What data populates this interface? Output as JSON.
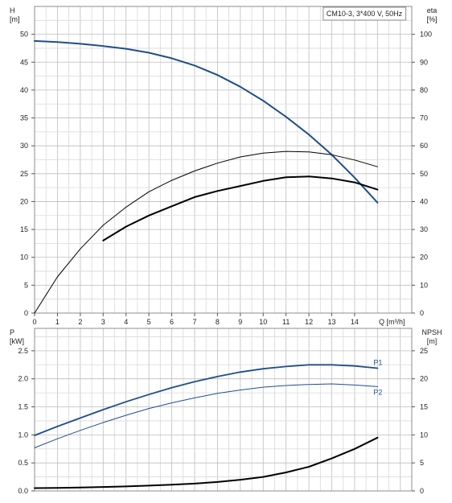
{
  "chart_data": [
    {
      "type": "line",
      "title": "CM10-3, 3*400 V, 50Hz",
      "left_axis": {
        "label": "H",
        "unit": "[m]",
        "range": [
          0,
          55
        ],
        "ticks": [
          0,
          5,
          10,
          15,
          20,
          25,
          30,
          35,
          40,
          45,
          50
        ]
      },
      "right_axis": {
        "label": "eta",
        "unit": "[%]",
        "range": [
          0,
          110
        ],
        "ticks": [
          0,
          10,
          20,
          30,
          40,
          50,
          60,
          70,
          80,
          90,
          100
        ]
      },
      "x_axis": {
        "label": "Q [m³/h]",
        "range": [
          0,
          16.5
        ],
        "ticks": [
          0,
          1,
          2,
          3,
          4,
          5,
          6,
          7,
          8,
          9,
          10,
          11,
          12,
          13,
          14
        ]
      },
      "grid": true,
      "series": [
        {
          "axis": "left",
          "color": "#1f4e8c",
          "width": 2,
          "x": [
            0,
            1,
            2,
            3,
            4,
            5,
            6,
            7,
            8,
            9,
            10,
            11,
            12,
            13,
            14,
            15
          ],
          "y": [
            48.8,
            48.6,
            48.3,
            47.9,
            47.4,
            46.7,
            45.7,
            44.4,
            42.7,
            40.6,
            38.1,
            35.2,
            32,
            28.4,
            24.3,
            19.8
          ]
        },
        {
          "axis": "right",
          "color": "#000000",
          "width": 1,
          "x": [
            0,
            1,
            2,
            3,
            4,
            5,
            6,
            7,
            8,
            9,
            10,
            11,
            12,
            13,
            14,
            15
          ],
          "y": [
            0,
            13,
            23,
            31.5,
            38,
            43.5,
            47.6,
            51,
            53.8,
            56,
            57.4,
            58,
            57.8,
            56.8,
            54.9,
            52.5
          ]
        },
        {
          "axis": "right",
          "color": "#000000",
          "width": 2,
          "x": [
            3,
            4,
            5,
            6,
            7,
            8,
            9,
            10,
            11,
            12,
            13,
            14,
            15
          ],
          "y": [
            26,
            31,
            35,
            38.3,
            41.6,
            43.8,
            45.6,
            47.4,
            48.7,
            49.0,
            48.3,
            46.9,
            44.3
          ]
        }
      ]
    },
    {
      "type": "line",
      "left_axis": {
        "label": "P",
        "unit": "[kW]",
        "range": [
          0,
          2.9
        ],
        "ticks": [
          0.0,
          0.5,
          1.0,
          1.5,
          2.0,
          2.5
        ]
      },
      "right_axis": {
        "label": "NPSH",
        "unit": "[m]",
        "range": [
          0,
          29
        ],
        "ticks": [
          0,
          5,
          10,
          15,
          20,
          25
        ]
      },
      "x_axis": {
        "range": [
          0,
          16.5
        ]
      },
      "grid": true,
      "series": [
        {
          "name": "P1",
          "axis": "left",
          "color": "#1f4e8c",
          "width": 1.8,
          "x": [
            0,
            1,
            2,
            3,
            4,
            5,
            6,
            7,
            8,
            9,
            10,
            11,
            12,
            13,
            14,
            15
          ],
          "y": [
            0.99,
            1.15,
            1.3,
            1.45,
            1.59,
            1.72,
            1.84,
            1.95,
            2.04,
            2.12,
            2.18,
            2.22,
            2.25,
            2.25,
            2.23,
            2.19
          ]
        },
        {
          "name": "P2",
          "axis": "left",
          "color": "#1f4e8c",
          "width": 1,
          "x": [
            0,
            1,
            2,
            3,
            4,
            5,
            6,
            7,
            8,
            9,
            10,
            11,
            12,
            13,
            14,
            15
          ],
          "y": [
            0.77,
            0.93,
            1.08,
            1.22,
            1.35,
            1.47,
            1.57,
            1.66,
            1.74,
            1.8,
            1.85,
            1.88,
            1.9,
            1.91,
            1.89,
            1.86
          ]
        },
        {
          "axis": "right",
          "color": "#000000",
          "width": 2,
          "x": [
            0,
            1,
            2,
            3,
            4,
            5,
            6,
            7,
            8,
            9,
            10,
            11,
            12,
            13,
            14,
            15
          ],
          "y": [
            0.5,
            0.55,
            0.6,
            0.7,
            0.8,
            0.95,
            1.1,
            1.3,
            1.6,
            2,
            2.5,
            3.3,
            4.3,
            5.8,
            7.5,
            9.5
          ]
        }
      ]
    }
  ]
}
